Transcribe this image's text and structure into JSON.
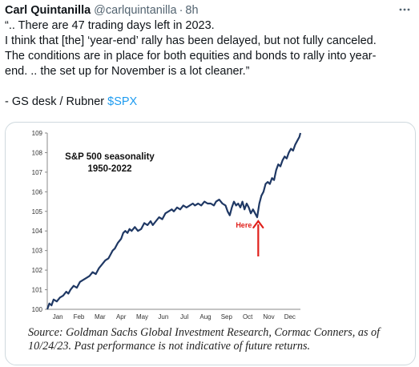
{
  "tweet": {
    "author_name": "Carl Quintanilla",
    "author_handle": "@carlquintanilla",
    "separator": "·",
    "time": "8h",
    "more_icon": "ellipsis-icon",
    "text_lines": [
      "“.. There are 47 trading days left in 2023.",
      "I think that [the] ‘year-end’ rally has been delayed, but not fully canceled.",
      "The conditions are in place for both equities and bonds to rally into year-",
      "end. .. the set up for November is a lot cleaner.”"
    ],
    "signature_prefix": "- GS desk / Rubner ",
    "cashtag": "$SPX"
  },
  "media": {
    "source_text": "Source: Goldman Sachs Global Investment Research, Cormac Conners,  as of 10/24/23. Past performance is not indicative of future returns.",
    "colors": {
      "line": "#1f3864",
      "arrow": "#e0201b",
      "annotation": "#e0201b"
    }
  },
  "chart_data": {
    "type": "line",
    "title": "S&P 500 seasonality\n1950-2022",
    "xlabel": "",
    "ylabel": "",
    "x_ticks": [
      "Jan",
      "Feb",
      "Mar",
      "Apr",
      "May",
      "Jun",
      "Jul",
      "Aug",
      "Sep",
      "Oct",
      "Nov",
      "Dec"
    ],
    "y_ticks": [
      100,
      101,
      102,
      103,
      104,
      105,
      106,
      107,
      108,
      109
    ],
    "ylim": [
      100,
      109
    ],
    "xlim": [
      0,
      12
    ],
    "grid": false,
    "annotation": {
      "text": "Here",
      "x": 10.0,
      "y_from": 102.7,
      "y_to": 104.5
    },
    "series": [
      {
        "values": [
          [
            0.0,
            100.0
          ],
          [
            0.1,
            100.3
          ],
          [
            0.2,
            100.2
          ],
          [
            0.3,
            100.5
          ],
          [
            0.45,
            100.4
          ],
          [
            0.6,
            100.6
          ],
          [
            0.75,
            100.7
          ],
          [
            0.9,
            100.9
          ],
          [
            1.0,
            100.8
          ],
          [
            1.1,
            101.0
          ],
          [
            1.25,
            101.2
          ],
          [
            1.4,
            101.1
          ],
          [
            1.55,
            101.4
          ],
          [
            1.7,
            101.5
          ],
          [
            1.85,
            101.6
          ],
          [
            2.0,
            101.7
          ],
          [
            2.15,
            101.9
          ],
          [
            2.3,
            101.8
          ],
          [
            2.45,
            102.1
          ],
          [
            2.6,
            102.3
          ],
          [
            2.75,
            102.5
          ],
          [
            2.9,
            102.6
          ],
          [
            3.0,
            102.8
          ],
          [
            3.1,
            103.0
          ],
          [
            3.2,
            103.1
          ],
          [
            3.35,
            103.4
          ],
          [
            3.5,
            103.6
          ],
          [
            3.6,
            103.9
          ],
          [
            3.7,
            104.0
          ],
          [
            3.8,
            103.9
          ],
          [
            3.9,
            104.1
          ],
          [
            4.0,
            104.0
          ],
          [
            4.15,
            104.2
          ],
          [
            4.3,
            104.0
          ],
          [
            4.45,
            104.1
          ],
          [
            4.6,
            104.4
          ],
          [
            4.75,
            104.3
          ],
          [
            4.9,
            104.5
          ],
          [
            5.0,
            104.3
          ],
          [
            5.15,
            104.5
          ],
          [
            5.3,
            104.7
          ],
          [
            5.45,
            104.6
          ],
          [
            5.6,
            104.9
          ],
          [
            5.75,
            105.0
          ],
          [
            5.9,
            105.1
          ],
          [
            6.0,
            105.0
          ],
          [
            6.15,
            105.2
          ],
          [
            6.3,
            105.1
          ],
          [
            6.45,
            105.3
          ],
          [
            6.6,
            105.2
          ],
          [
            6.75,
            105.3
          ],
          [
            6.9,
            105.4
          ],
          [
            7.0,
            105.3
          ],
          [
            7.15,
            105.4
          ],
          [
            7.3,
            105.3
          ],
          [
            7.45,
            105.5
          ],
          [
            7.6,
            105.4
          ],
          [
            7.75,
            105.4
          ],
          [
            7.9,
            105.3
          ],
          [
            8.0,
            105.5
          ],
          [
            8.15,
            105.6
          ],
          [
            8.3,
            105.4
          ],
          [
            8.45,
            105.3
          ],
          [
            8.55,
            105.0
          ],
          [
            8.65,
            104.8
          ],
          [
            8.75,
            105.2
          ],
          [
            8.85,
            105.5
          ],
          [
            8.95,
            105.3
          ],
          [
            9.05,
            105.4
          ],
          [
            9.15,
            105.2
          ],
          [
            9.25,
            105.5
          ],
          [
            9.35,
            105.1
          ],
          [
            9.45,
            105.4
          ],
          [
            9.55,
            105.2
          ],
          [
            9.65,
            104.9
          ],
          [
            9.75,
            105.1
          ],
          [
            9.85,
            104.9
          ],
          [
            9.95,
            104.7
          ],
          [
            10.05,
            105.4
          ],
          [
            10.15,
            105.8
          ],
          [
            10.25,
            106.0
          ],
          [
            10.35,
            106.4
          ],
          [
            10.45,
            106.5
          ],
          [
            10.55,
            106.4
          ],
          [
            10.65,
            106.7
          ],
          [
            10.75,
            106.6
          ],
          [
            10.85,
            107.1
          ],
          [
            10.95,
            107.4
          ],
          [
            11.05,
            107.3
          ],
          [
            11.15,
            107.6
          ],
          [
            11.25,
            107.8
          ],
          [
            11.35,
            107.7
          ],
          [
            11.45,
            108.0
          ],
          [
            11.55,
            108.2
          ],
          [
            11.65,
            108.1
          ],
          [
            11.75,
            108.4
          ],
          [
            11.85,
            108.6
          ],
          [
            11.95,
            108.8
          ],
          [
            12.0,
            109.0
          ]
        ]
      }
    ]
  }
}
